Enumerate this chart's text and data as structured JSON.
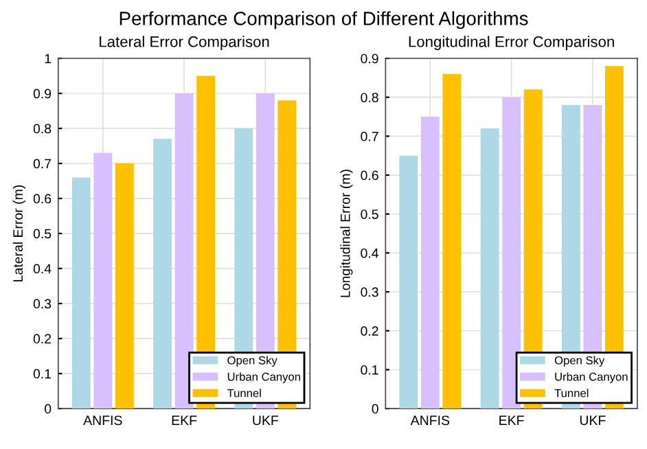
{
  "chart_data": [
    {
      "type": "bar",
      "title": "Lateral Error Comparison",
      "ylabel": "Lateral Error (m)",
      "annotations": [
        "Performance Comparison of Different Algorithms"
      ],
      "categories": [
        "ANFIS",
        "EKF",
        "UKF"
      ],
      "series": [
        {
          "name": "Open Sky",
          "color": "#add8e6",
          "values": [
            0.66,
            0.77,
            0.8
          ]
        },
        {
          "name": "Urban Canyon",
          "color": "#d8bfff",
          "values": [
            0.73,
            0.9,
            0.9
          ]
        },
        {
          "name": "Tunnel",
          "color": "#ffc000",
          "values": [
            0.7,
            0.95,
            0.88
          ]
        }
      ],
      "ylim": [
        0,
        1
      ],
      "yticks": [
        0,
        0.1,
        0.2,
        0.3,
        0.4,
        0.5,
        0.6,
        0.7,
        0.8,
        0.9,
        1
      ],
      "grid": true,
      "legend": "bottom right"
    },
    {
      "type": "bar",
      "title": "Longitudinal Error Comparison",
      "ylabel": "Longitudinal Error (m)",
      "categories": [
        "ANFIS",
        "EKF",
        "UKF"
      ],
      "series": [
        {
          "name": "Open Sky",
          "color": "#add8e6",
          "values": [
            0.65,
            0.72,
            0.78
          ]
        },
        {
          "name": "Urban Canyon",
          "color": "#d8bfff",
          "values": [
            0.75,
            0.8,
            0.78
          ]
        },
        {
          "name": "Tunnel",
          "color": "#ffc000",
          "values": [
            0.86,
            0.82,
            0.88
          ]
        }
      ],
      "ylim": [
        0,
        0.9
      ],
      "yticks": [
        0,
        0.1,
        0.2,
        0.3,
        0.4,
        0.5,
        0.6,
        0.7,
        0.8,
        0.9
      ],
      "grid": true,
      "legend": "bottom right"
    }
  ]
}
